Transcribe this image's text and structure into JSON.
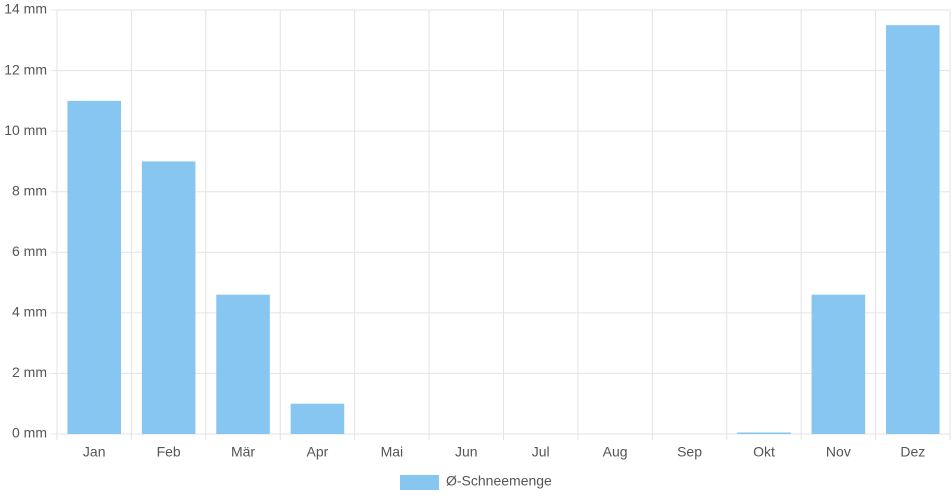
{
  "chart_data": {
    "type": "bar",
    "categories": [
      "Jan",
      "Feb",
      "Mär",
      "Apr",
      "Mai",
      "Jun",
      "Jul",
      "Aug",
      "Sep",
      "Okt",
      "Nov",
      "Dez"
    ],
    "series": [
      {
        "name": "Ø-Schneemenge",
        "color": "#88c6f2",
        "values": [
          11.0,
          9.0,
          4.6,
          1.0,
          0,
          0,
          0,
          0,
          0,
          0.05,
          4.6,
          13.5
        ]
      }
    ],
    "ylim": [
      0,
      14
    ],
    "yticks": [
      {
        "value": 0,
        "label": "0 mm"
      },
      {
        "value": 2,
        "label": "2 mm"
      },
      {
        "value": 4,
        "label": "4 mm"
      },
      {
        "value": 6,
        "label": "6 mm"
      },
      {
        "value": 8,
        "label": "8 mm"
      },
      {
        "value": 10,
        "label": "10 mm"
      },
      {
        "value": 12,
        "label": "12 mm"
      },
      {
        "value": 14,
        "label": "14 mm"
      }
    ],
    "grid": true,
    "legend": "bottom"
  }
}
